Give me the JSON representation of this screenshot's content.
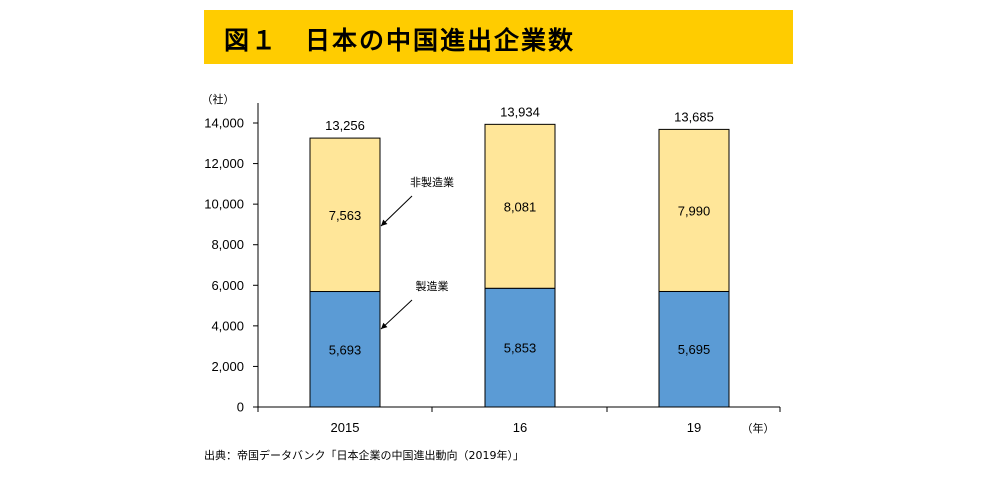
{
  "title": "図１　日本の中国進出企業数",
  "source": "出典：帝国データバンク「日本企業の中国進出動向（2019年）」",
  "colors": {
    "title_band": "#FFCC00",
    "manufacturing": "#5B9BD5",
    "non_manufacturing": "#FFE699",
    "outline": "#000000"
  },
  "chart_data": {
    "type": "bar",
    "stacked": true,
    "categories": [
      "2015",
      "16",
      "19"
    ],
    "series": [
      {
        "name": "製造業",
        "values": [
          5693,
          5853,
          5695
        ]
      },
      {
        "name": "非製造業",
        "values": [
          7563,
          8081,
          7990
        ]
      }
    ],
    "totals": [
      13256,
      13934,
      13685
    ],
    "total_labels": [
      "13,256",
      "13,934",
      "13,685"
    ],
    "manufacturing_labels": [
      "5,693",
      "5,853",
      "5,695"
    ],
    "non_manufacturing_labels": [
      "7,563",
      "8,081",
      "7,990"
    ],
    "ylim": [
      0,
      14000
    ],
    "yticks": [
      0,
      2000,
      4000,
      6000,
      8000,
      10000,
      12000,
      14000
    ],
    "ytick_labels": [
      "0",
      "2,000",
      "4,000",
      "6,000",
      "8,000",
      "10,000",
      "12,000",
      "14,000"
    ],
    "ylabel": "（社）",
    "xlabel": "（年）",
    "grid": false,
    "legend": "annotation-arrows"
  }
}
